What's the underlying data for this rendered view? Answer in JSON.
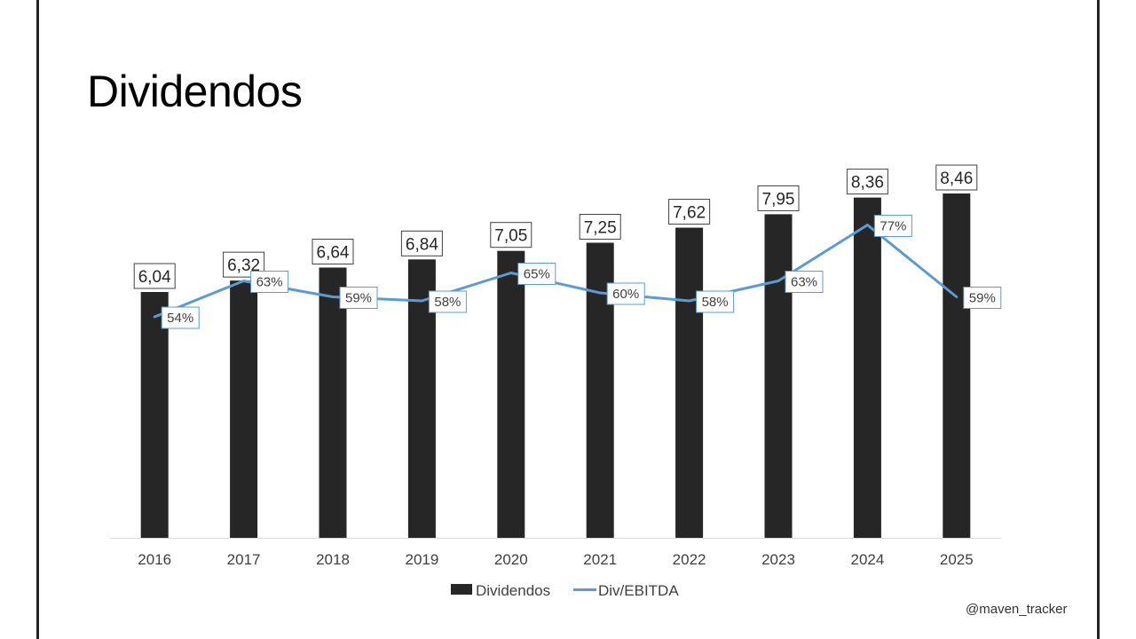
{
  "slide": {
    "title": "Dividendos",
    "watermark": "@maven_tracker"
  },
  "chart_data": {
    "type": "bar",
    "title": "Dividendos",
    "categories": [
      "2016",
      "2017",
      "2018",
      "2019",
      "2020",
      "2021",
      "2022",
      "2023",
      "2024",
      "2025"
    ],
    "series": [
      {
        "name": "Dividendos",
        "type": "bar",
        "values": [
          6.04,
          6.32,
          6.64,
          6.84,
          7.05,
          7.25,
          7.62,
          7.95,
          8.36,
          8.46
        ],
        "labels": [
          "6,04",
          "6,32",
          "6,64",
          "6,84",
          "7,05",
          "7,25",
          "7,62",
          "7,95",
          "8,36",
          "8,46"
        ],
        "color": "#262626"
      },
      {
        "name": "Div/EBITDA",
        "type": "line",
        "values": [
          54,
          63,
          59,
          58,
          65,
          60,
          58,
          63,
          77,
          59
        ],
        "labels": [
          "54%",
          "63%",
          "59%",
          "58%",
          "65%",
          "60%",
          "58%",
          "63%",
          "77%",
          "59%"
        ],
        "color": "#5B9BD5"
      }
    ],
    "xlabel": "",
    "ylabel": "",
    "grid": false,
    "legend": "bottom"
  }
}
